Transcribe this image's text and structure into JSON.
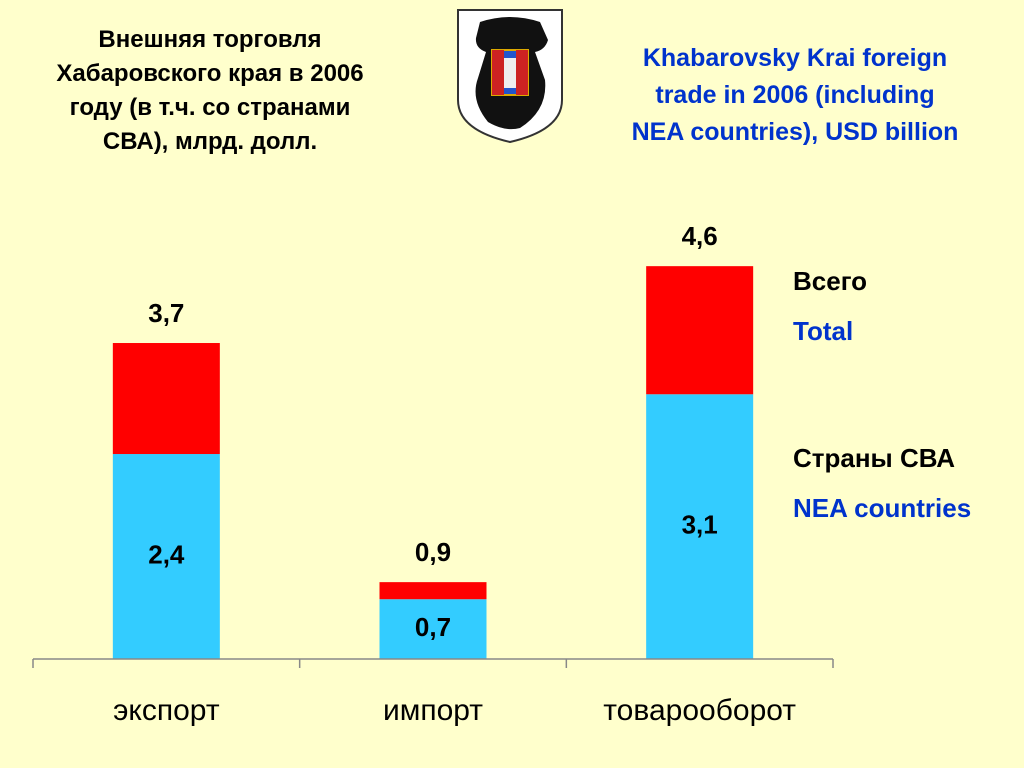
{
  "chart_data": {
    "type": "stacked_bar",
    "title": "Внешняя торговля\nХабаровского края в 2006\nгоду (в т.ч. со странами\nСВА), млрд. долл.",
    "title_en": "Khabarovsky Krai foreign\ntrade in 2006 (including\nNEA countries), USD billion",
    "categories": [
      "экспорт",
      "импорт",
      "товарооборот"
    ],
    "series": [
      {
        "name": "Страны СВА",
        "name_en": "NEA countries",
        "color": "#33ccff",
        "values": [
          2.4,
          0.7,
          3.1
        ],
        "value_labels": [
          "2,4",
          "0,7",
          "3,1"
        ]
      },
      {
        "name": "Всего",
        "name_en": "Total",
        "color": "#ff0000",
        "values": [
          1.3,
          0.2,
          1.5
        ]
      }
    ],
    "totals": {
      "values": [
        3.7,
        0.9,
        4.6
      ],
      "value_labels": [
        "3,7",
        "0,9",
        "4,6"
      ]
    },
    "ylim": [
      0,
      5
    ]
  }
}
